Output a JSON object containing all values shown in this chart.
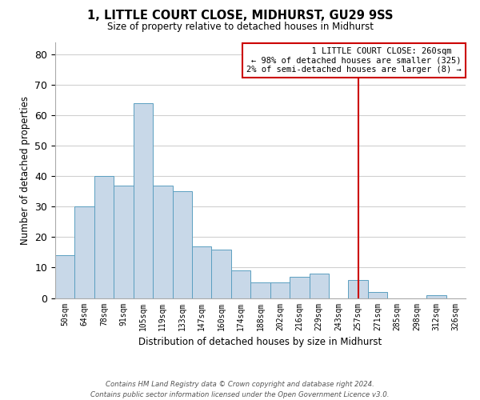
{
  "title": "1, LITTLE COURT CLOSE, MIDHURST, GU29 9SS",
  "subtitle": "Size of property relative to detached houses in Midhurst",
  "xlabel": "Distribution of detached houses by size in Midhurst",
  "ylabel": "Number of detached properties",
  "bin_labels": [
    "50sqm",
    "64sqm",
    "78sqm",
    "91sqm",
    "105sqm",
    "119sqm",
    "133sqm",
    "147sqm",
    "160sqm",
    "174sqm",
    "188sqm",
    "202sqm",
    "216sqm",
    "229sqm",
    "243sqm",
    "257sqm",
    "271sqm",
    "285sqm",
    "298sqm",
    "312sqm",
    "326sqm"
  ],
  "bar_heights": [
    14,
    30,
    40,
    37,
    64,
    37,
    35,
    17,
    16,
    9,
    5,
    5,
    7,
    8,
    0,
    6,
    2,
    0,
    0,
    1,
    0
  ],
  "bar_color": "#c8d8e8",
  "bar_edge_color": "#5b9fc0",
  "grid_color": "#d0d0d0",
  "background_color": "#ffffff",
  "vline_x_index": 15,
  "vline_color": "#cc0000",
  "annotation_line1": "  1 LITTLE COURT CLOSE: 260sqm  ",
  "annotation_line2": "← 98% of detached houses are smaller (325)",
  "annotation_line3": "2% of semi-detached houses are larger (8) →",
  "annotation_box_color": "#cc0000",
  "footer_line1": "Contains HM Land Registry data © Crown copyright and database right 2024.",
  "footer_line2": "Contains public sector information licensed under the Open Government Licence v3.0.",
  "ylim": [
    0,
    84
  ],
  "yticks": [
    0,
    10,
    20,
    30,
    40,
    50,
    60,
    70,
    80
  ]
}
